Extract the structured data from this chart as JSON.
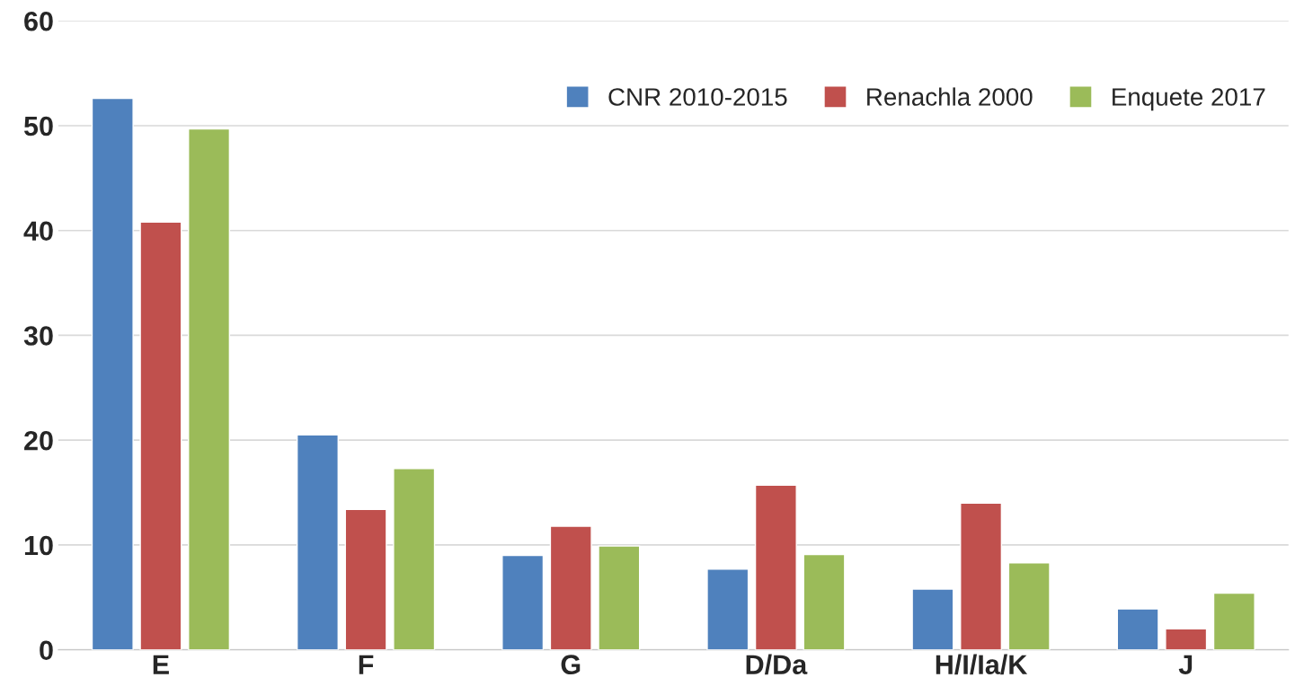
{
  "chart_data": {
    "type": "bar",
    "categories": [
      "E",
      "F",
      "G",
      "D/Da",
      "H/I/Ia/K",
      "J"
    ],
    "series": [
      {
        "name": "CNR 2010-2015",
        "color": "#4f81bd",
        "values": [
          52.6,
          20.5,
          9.0,
          7.7,
          5.8,
          3.9
        ]
      },
      {
        "name": "Renachla 2000",
        "color": "#c0504d",
        "values": [
          40.8,
          13.4,
          11.8,
          15.7,
          14.0,
          2.0
        ]
      },
      {
        "name": "Enquete 2017",
        "color": "#9bbb59",
        "values": [
          49.7,
          17.3,
          9.9,
          9.1,
          8.3,
          5.4
        ]
      }
    ],
    "ylim": [
      0,
      60
    ],
    "yticks": [
      0,
      10,
      20,
      30,
      40,
      50,
      60
    ],
    "grid": "y",
    "legend": "top right"
  }
}
